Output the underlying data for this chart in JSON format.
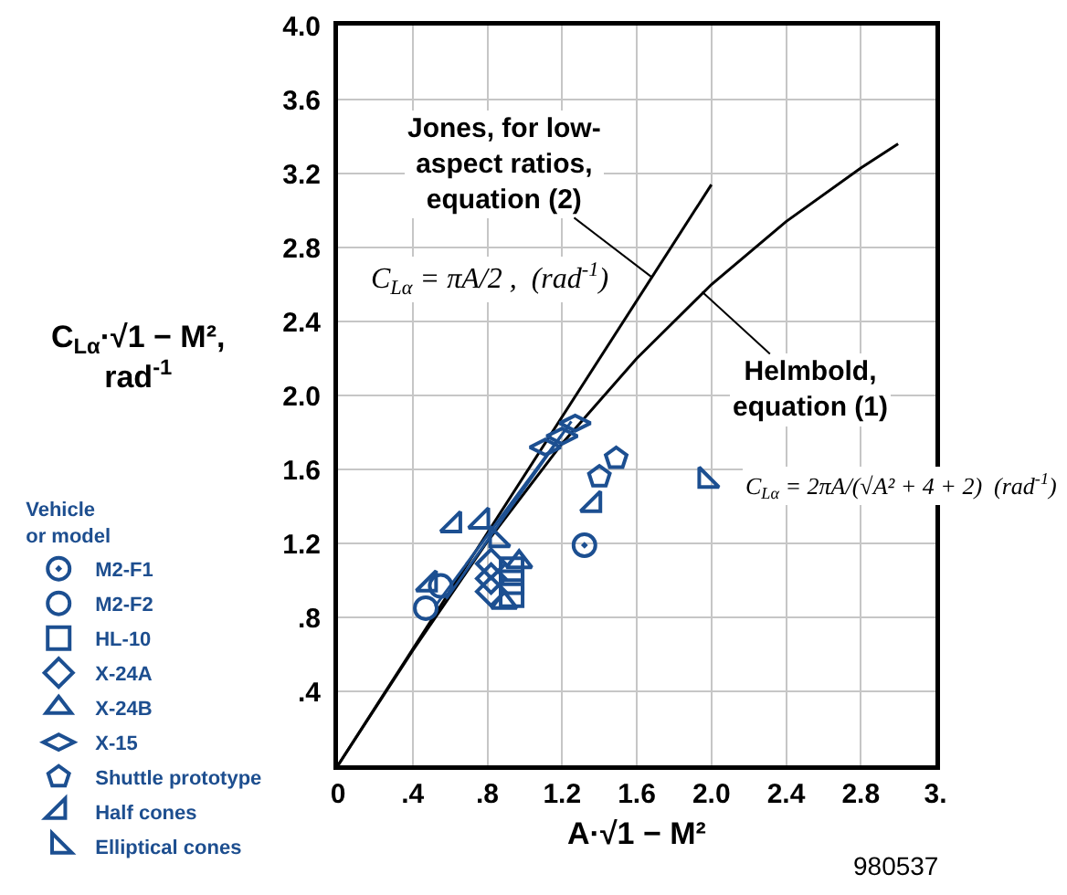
{
  "chart_data": {
    "type": "scatter",
    "xlabel": "A·√1 − M²",
    "ylabel": "C$_{Lα}$·√1 − M²,\nrad$^{-1}$",
    "legend_title": "Vehicle\nor model",
    "xlim": [
      0,
      3.2
    ],
    "ylim": [
      0,
      4
    ],
    "xticks": [
      0,
      {
        "value": 0.4,
        "label": ".4"
      },
      {
        "value": 0.8,
        "label": ".8"
      },
      1.2,
      1.6,
      {
        "value": 2,
        "label": "2.0"
      },
      2.4,
      2.8,
      {
        "value": 3.2,
        "label": "3."
      }
    ],
    "yticks": [
      {
        "value": 0.4,
        "label": ".4"
      },
      {
        "value": 0.8,
        "label": ".8"
      },
      1.2,
      1.6,
      {
        "value": 2,
        "label": "2.0"
      },
      2.4,
      2.8,
      3.2,
      3.6,
      {
        "value": 4,
        "label": "4.0"
      }
    ],
    "grid": true,
    "legend": "left",
    "series": [
      {
        "name": "M2-F1",
        "color": "#1c4f91",
        "marker": "circle",
        "x": [
          1.32
        ],
        "values": [
          1.19
        ]
      },
      {
        "name": "M2-F2",
        "color": "#1c4f91",
        "marker": "circle",
        "x": [
          0.47,
          0.55
        ],
        "values": [
          0.85,
          0.97
        ]
      },
      {
        "name": "HL-10",
        "color": "#1c4f91",
        "marker": "square",
        "x": [
          0.93,
          0.93,
          0.93
        ],
        "values": [
          1.06,
          0.99,
          0.92
        ]
      },
      {
        "name": "X-24A",
        "color": "#1c4f91",
        "marker": "diamond",
        "x": [
          0.82,
          0.82,
          0.82
        ],
        "values": [
          1.09,
          1.01,
          0.94
        ]
      },
      {
        "name": "X-24B",
        "color": "#1c4f91",
        "marker": "triangle",
        "x": [
          0.97,
          0.89
        ],
        "values": [
          1.1,
          0.88
        ]
      },
      {
        "name": "X-15",
        "color": "#1c4f91",
        "marker": "diamond",
        "x": [
          1.11,
          1.2,
          1.27
        ],
        "values": [
          1.72,
          1.78,
          1.85
        ]
      },
      {
        "name": "Shuttle prototype",
        "color": "#1c4f91",
        "marker": "circle",
        "x": [
          1.4,
          1.49
        ],
        "values": [
          1.56,
          1.66
        ]
      },
      {
        "name": "Half cones",
        "color": "#1c4f91",
        "marker": "triangle",
        "x": [
          0.49,
          0.62,
          0.77,
          1.37
        ],
        "values": [
          0.98,
          1.3,
          1.32,
          1.41
        ]
      },
      {
        "name": "Elliptical cones",
        "color": "#1c4f91",
        "marker": "triangle",
        "x": [
          0.85,
          1.97
        ],
        "values": [
          1.22,
          1.54
        ]
      },
      {
        "type": "line",
        "color": "#000000",
        "marker": "none",
        "x": [
          0,
          2.0
        ],
        "values": [
          0,
          3.14
        ]
      },
      {
        "type": "line",
        "color": "#000000",
        "marker": "none",
        "x": [
          0,
          0.4,
          0.8,
          1.2,
          1.6,
          2.0,
          2.4,
          2.8,
          3.0
        ],
        "values": [
          0,
          0.62,
          1.21,
          1.74,
          2.2,
          2.6,
          2.94,
          3.23,
          3.36
        ]
      },
      {
        "type": "line",
        "color": "#1c4f91",
        "marker": "none",
        "x": [
          0.58,
          1.25
        ],
        "values": [
          0.9,
          1.86
        ]
      },
      {
        "type": "line",
        "color": "#1c4f91",
        "marker": "none",
        "x": [
          0.52,
          1.2
        ],
        "values": [
          0.86,
          1.79
        ]
      }
    ],
    "annotations": [
      {
        "text": "Jones, for low-\naspect ratios,\nequation (2)",
        "x": 1.68,
        "y": 2.64
      },
      "C$_{Lα}$ = πA/2 ,  (rad$^{-1}$)",
      {
        "text": "Helmbold,\nequation (1)",
        "x": 1.95,
        "y": 2.56
      },
      "C$_{Lα}$ = 2πA/(√A² + 4 + 2)  (rad$^{-1}$)",
      "980537"
    ]
  }
}
